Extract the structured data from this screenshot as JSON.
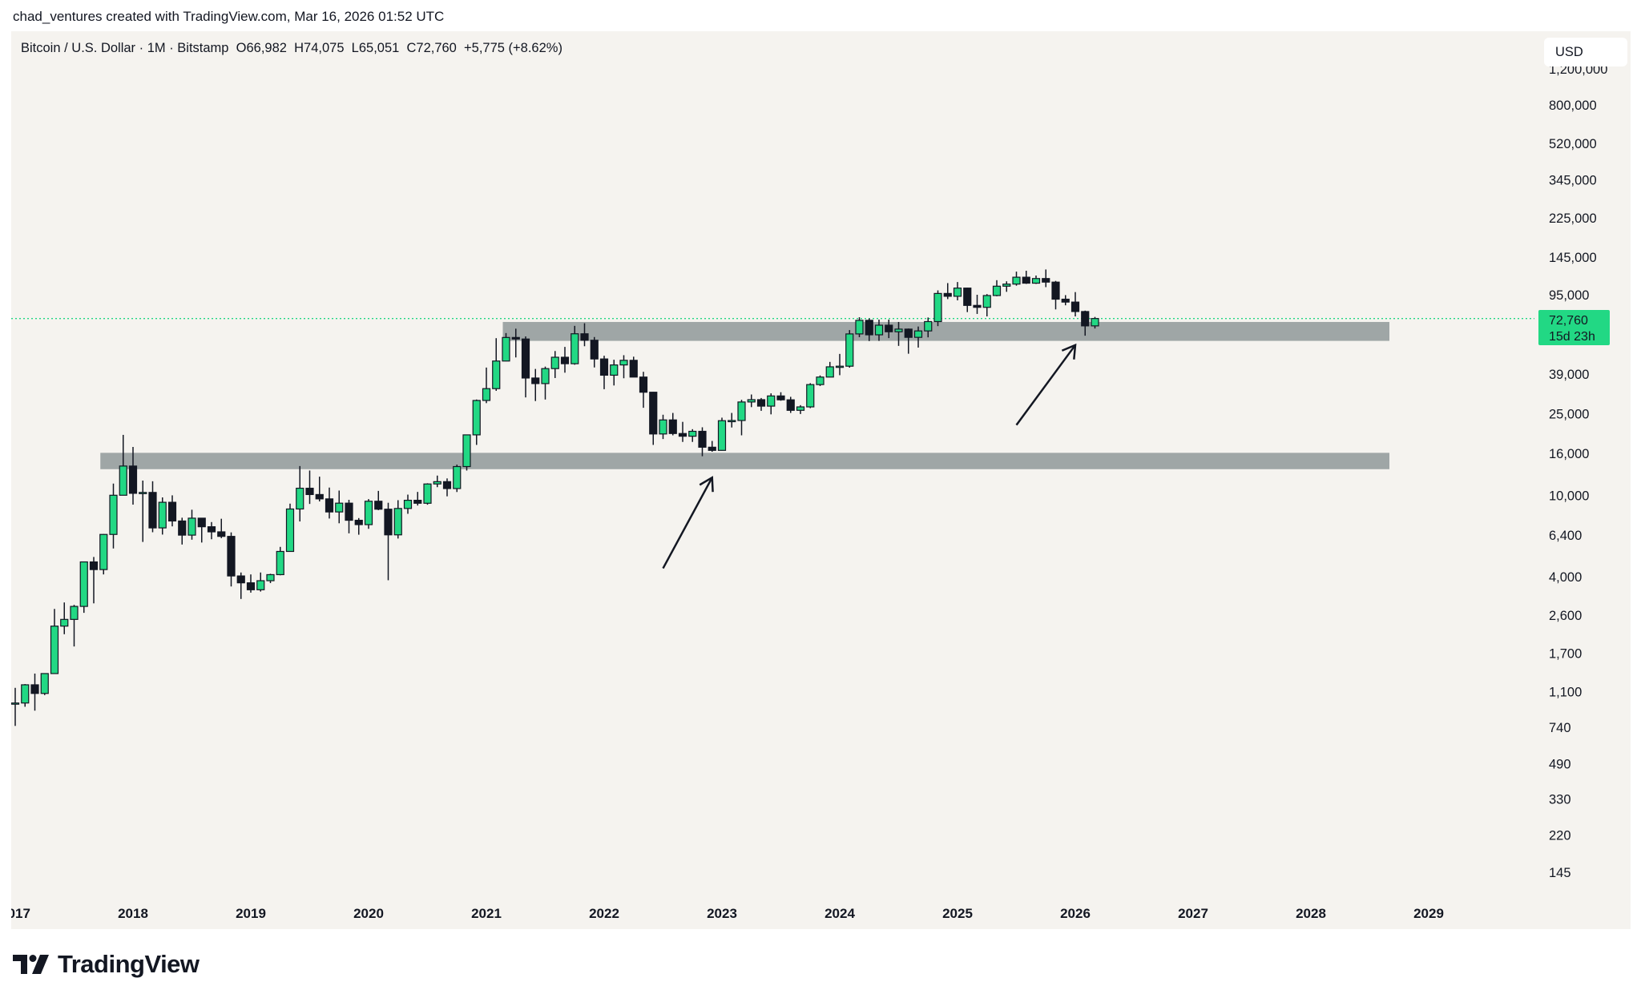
{
  "credit": "chad_ventures created with TradingView.com, Mar 16, 2026 01:52 UTC",
  "legend": "Bitcoin / U.S. Dollar · 1M · Bitstamp  O66,982  H74,075  L65,051  C72,760  +5,775 (+8.62%)",
  "currency_button": "USD",
  "brand": "TradingView",
  "colors": {
    "up": "#22d884",
    "down": "#131722",
    "band": "#9fa6a6",
    "last_price": "#22d884",
    "background": "#f5f3ef"
  },
  "price_label": {
    "price": "72,760",
    "countdown": "15d 23h"
  },
  "chart_data": {
    "type": "candlestick",
    "scale": "log",
    "timeframe": "1M",
    "start": "2017-01",
    "price_ticks": [
      "1,200,000",
      "800,000",
      "520,000",
      "345,000",
      "225,000",
      "145,000",
      "95,000",
      "39,000",
      "25,000",
      "16,000",
      "10,000",
      "6,400",
      "4,000",
      "2,600",
      "1,700",
      "1,100",
      "740",
      "490",
      "330",
      "220",
      "145"
    ],
    "year_ticks": [
      "2017",
      "2018",
      "2019",
      "2020",
      "2021",
      "2022",
      "2023",
      "2024",
      "2025",
      "2026",
      "2027",
      "2028",
      "2029"
    ],
    "last_price": 72760,
    "zones": [
      {
        "from": "2021-03",
        "to": "2028-09",
        "low": 56600,
        "high": 70000
      },
      {
        "from": "2017-10",
        "to": "2028-09",
        "low": 13400,
        "high": 16100
      }
    ],
    "arrows": [
      {
        "from_date": "2022-07",
        "from_price": 4400,
        "to_date": "2022-12",
        "to_price": 12200
      },
      {
        "from_date": "2025-07",
        "from_price": 22000,
        "to_date": "2026-01",
        "to_price": 54000
      }
    ],
    "ohlc": [
      [
        963,
        1150,
        750,
        970
      ],
      [
        970,
        1200,
        930,
        1190
      ],
      [
        1190,
        1350,
        890,
        1080
      ],
      [
        1080,
        1350,
        1060,
        1350
      ],
      [
        1350,
        2790,
        1350,
        2300
      ],
      [
        2300,
        3000,
        2100,
        2480
      ],
      [
        2480,
        2920,
        1830,
        2870
      ],
      [
        2870,
        4480,
        2670,
        4730
      ],
      [
        4730,
        5000,
        2970,
        4340
      ],
      [
        4340,
        6470,
        4110,
        6440
      ],
      [
        6440,
        11400,
        5500,
        10000
      ],
      [
        10000,
        19700,
        10900,
        13880
      ],
      [
        13880,
        17200,
        9000,
        10220
      ],
      [
        10220,
        11790,
        5920,
        10320
      ],
      [
        10320,
        11700,
        6600,
        6930
      ],
      [
        6930,
        9760,
        6430,
        9240
      ],
      [
        9240,
        9990,
        7050,
        7490
      ],
      [
        7490,
        7770,
        5750,
        6390
      ],
      [
        6390,
        8500,
        6070,
        7730
      ],
      [
        7730,
        7760,
        5880,
        7020
      ],
      [
        7020,
        7400,
        6100,
        6630
      ],
      [
        6630,
        7680,
        6180,
        6300
      ],
      [
        6300,
        6590,
        3590,
        4040
      ],
      [
        4040,
        4200,
        3120,
        3740
      ],
      [
        3740,
        4110,
        3350,
        3460
      ],
      [
        3460,
        4200,
        3390,
        3830
      ],
      [
        3830,
        4140,
        3730,
        4100
      ],
      [
        4100,
        5600,
        4070,
        5320
      ],
      [
        5320,
        9100,
        5330,
        8570
      ],
      [
        8570,
        13880,
        7450,
        10820
      ],
      [
        10820,
        13200,
        9070,
        10080
      ],
      [
        10080,
        12320,
        9330,
        9600
      ],
      [
        9600,
        10900,
        7700,
        8290
      ],
      [
        8290,
        10540,
        7300,
        9150
      ],
      [
        9150,
        9500,
        6520,
        7550
      ],
      [
        7550,
        7740,
        6420,
        7190
      ],
      [
        7190,
        9580,
        6860,
        9350
      ],
      [
        9350,
        10500,
        8460,
        8550
      ],
      [
        8550,
        9190,
        3850,
        6410
      ],
      [
        6410,
        9460,
        6150,
        8620
      ],
      [
        8620,
        10070,
        8120,
        9450
      ],
      [
        9450,
        10380,
        8910,
        9140
      ],
      [
        9140,
        11440,
        8990,
        11350
      ],
      [
        11350,
        12470,
        10950,
        11650
      ],
      [
        11650,
        12080,
        9880,
        10780
      ],
      [
        10780,
        14100,
        10370,
        13800
      ],
      [
        13800,
        19480,
        13200,
        19700
      ],
      [
        19700,
        29300,
        17600,
        28990
      ],
      [
        28990,
        41950,
        28130,
        33110
      ],
      [
        33110,
        58350,
        32300,
        45140
      ],
      [
        45140,
        61800,
        45000,
        58800
      ],
      [
        58800,
        64900,
        47000,
        57800
      ],
      [
        57800,
        59500,
        30000,
        37300
      ],
      [
        37300,
        41300,
        28800,
        35040
      ],
      [
        35040,
        42400,
        29300,
        41460
      ],
      [
        41460,
        50500,
        37300,
        47100
      ],
      [
        47100,
        52900,
        39600,
        43800
      ],
      [
        43800,
        67000,
        43300,
        61300
      ],
      [
        61300,
        69000,
        53300,
        57000
      ],
      [
        57000,
        59100,
        42000,
        46200
      ],
      [
        46200,
        47900,
        32900,
        38500
      ],
      [
        38500,
        45800,
        34300,
        43200
      ],
      [
        43200,
        48200,
        37200,
        45500
      ],
      [
        45500,
        47400,
        37700,
        37700
      ],
      [
        37700,
        40000,
        26700,
        31800
      ],
      [
        31800,
        31900,
        17600,
        19900
      ],
      [
        19900,
        24700,
        18800,
        23300
      ],
      [
        23300,
        25200,
        19600,
        20000
      ],
      [
        20000,
        22800,
        18200,
        19400
      ],
      [
        19400,
        21000,
        18200,
        20500
      ],
      [
        20500,
        21450,
        15500,
        17150
      ],
      [
        17150,
        18400,
        16300,
        16550
      ],
      [
        16550,
        23900,
        16500,
        23100
      ],
      [
        23100,
        25200,
        21400,
        23150
      ],
      [
        23150,
        29200,
        19600,
        28500
      ],
      [
        28500,
        31000,
        26900,
        29250
      ],
      [
        29250,
        29800,
        25800,
        27200
      ],
      [
        27200,
        31400,
        24800,
        30500
      ],
      [
        30500,
        31800,
        28900,
        29200
      ],
      [
        29200,
        30200,
        25200,
        25950
      ],
      [
        25950,
        27500,
        24900,
        26970
      ],
      [
        26970,
        35200,
        26600,
        34650
      ],
      [
        34650,
        38400,
        34100,
        37700
      ],
      [
        37700,
        44700,
        37600,
        42300
      ],
      [
        42300,
        48900,
        38500,
        42600
      ],
      [
        42600,
        63900,
        41900,
        61200
      ],
      [
        61200,
        73800,
        59000,
        71300
      ],
      [
        71300,
        72800,
        56500,
        60600
      ],
      [
        60600,
        71900,
        56600,
        67500
      ],
      [
        67500,
        71900,
        58400,
        62700
      ],
      [
        62700,
        70000,
        53500,
        64600
      ],
      [
        64600,
        65000,
        49000,
        58900
      ],
      [
        58900,
        66500,
        52500,
        63300
      ],
      [
        63300,
        73600,
        58900,
        70300
      ],
      [
        70300,
        99800,
        66800,
        96400
      ],
      [
        96400,
        108300,
        90500,
        93400
      ],
      [
        93400,
        109600,
        89200,
        102400
      ],
      [
        102400,
        102800,
        78200,
        84300
      ],
      [
        84300,
        95000,
        76600,
        82500
      ],
      [
        82500,
        95700,
        74500,
        94200
      ],
      [
        94200,
        111900,
        93400,
        104600
      ],
      [
        104600,
        110500,
        98200,
        107100
      ],
      [
        107100,
        123200,
        105200,
        115700
      ],
      [
        115700,
        124400,
        107300,
        108200
      ],
      [
        108200,
        117900,
        107300,
        114000
      ],
      [
        114000,
        126200,
        103500,
        109500
      ],
      [
        109500,
        111000,
        80600,
        90400
      ],
      [
        90400,
        94600,
        84400,
        87500
      ],
      [
        87500,
        97900,
        74500,
        78700
      ],
      [
        78700,
        79500,
        60000,
        66982
      ],
      [
        66982,
        74075,
        65051,
        72760
      ]
    ]
  }
}
